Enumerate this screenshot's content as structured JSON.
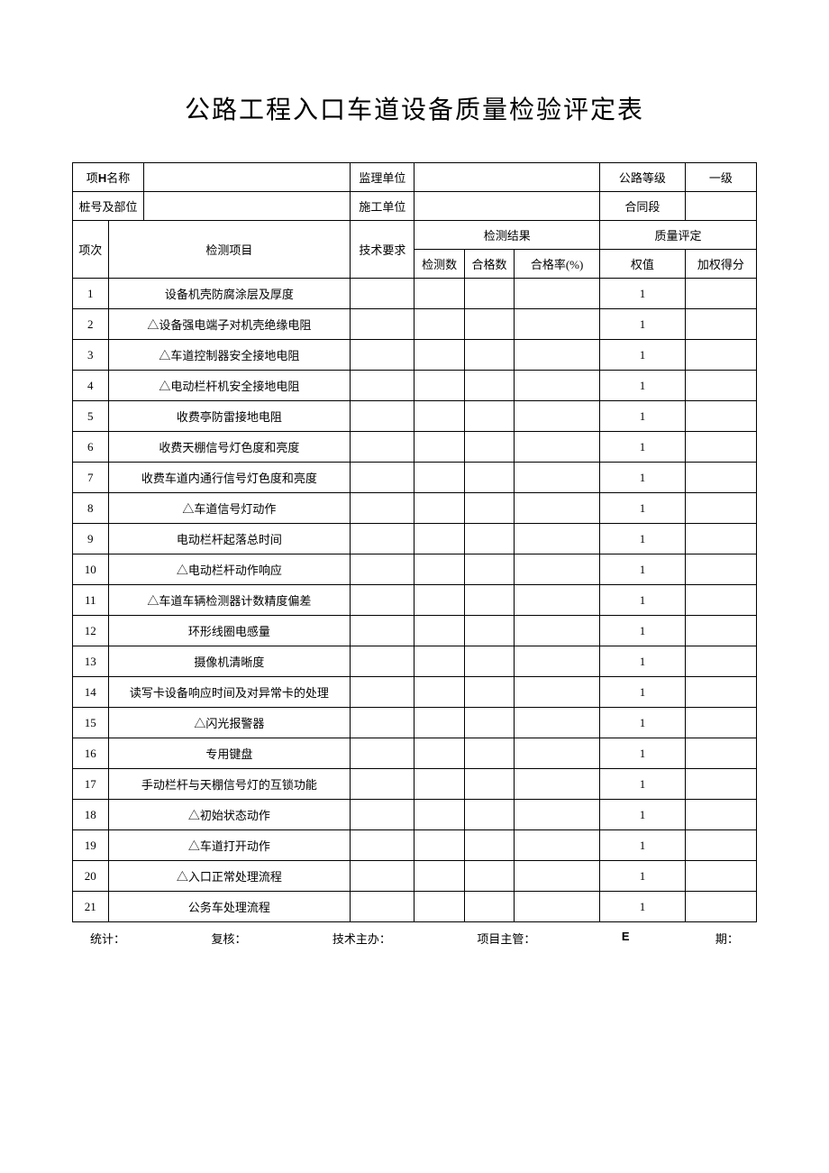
{
  "title_prefix": "公路工程入口车道设备质量检验评定表",
  "header": {
    "project_name_label_pre": "项",
    "project_name_label_h": "H",
    "project_name_label_post": "名称",
    "supervision_unit_label": "监理单位",
    "road_grade_label": "公路等级",
    "road_grade_value": "一级",
    "station_label": "桩号及部位",
    "construction_unit_label": "施工单位",
    "contract_section_label": "合同段"
  },
  "columns": {
    "seq": "项次",
    "detection_item": "检测项目",
    "tech_req": "技术要求",
    "result_group": "检测结果",
    "quality_group": "质量评定",
    "test_count": "检测数",
    "pass_count": "合格数",
    "pass_rate": "合格率(%)",
    "weight": "权值",
    "weighted_score": "加权得分"
  },
  "rows": [
    {
      "seq": "1",
      "item": "设备机壳防腐涂层及厚度",
      "weight": "1"
    },
    {
      "seq": "2",
      "item": "△设备强电端子对机壳绝缘电阻",
      "weight": "1"
    },
    {
      "seq": "3",
      "item": "△车道控制器安全接地电阻",
      "weight": "1"
    },
    {
      "seq": "4",
      "item": "△电动栏杆机安全接地电阻",
      "weight": "1"
    },
    {
      "seq": "5",
      "item": "收费亭防雷接地电阻",
      "weight": "1"
    },
    {
      "seq": "6",
      "item": "收费天棚信号灯色度和亮度",
      "weight": "1"
    },
    {
      "seq": "7",
      "item": "收费车道内通行信号灯色度和亮度",
      "weight": "1"
    },
    {
      "seq": "8",
      "item": "△车道信号灯动作",
      "weight": "1"
    },
    {
      "seq": "9",
      "item": "电动栏杆起落总时间",
      "weight": "1"
    },
    {
      "seq": "10",
      "item": "△电动栏杆动作响应",
      "weight": "1"
    },
    {
      "seq": "11",
      "item": "△车道车辆检测器计数精度偏差",
      "weight": "1"
    },
    {
      "seq": "12",
      "item": "环形线圈电感量",
      "weight": "1"
    },
    {
      "seq": "13",
      "item": "摄像机清晰度",
      "weight": "1"
    },
    {
      "seq": "14",
      "item": "读写卡设备响应时间及对异常卡的处理",
      "weight": "1"
    },
    {
      "seq": "15",
      "item": "△闪光报警器",
      "weight": "1"
    },
    {
      "seq": "16",
      "item": "专用键盘",
      "weight": "1"
    },
    {
      "seq": "17",
      "item": "手动栏杆与天棚信号灯的互锁功能",
      "weight": "1"
    },
    {
      "seq": "18",
      "item": "△初始状态动作",
      "weight": "1"
    },
    {
      "seq": "19",
      "item": "△车道打开动作",
      "weight": "1"
    },
    {
      "seq": "20",
      "item": "△入口正常处理流程",
      "weight": "1"
    },
    {
      "seq": "21",
      "item": "公务车处理流程",
      "weight": "1"
    }
  ],
  "footer": {
    "stat": "统计：",
    "review": "复核：",
    "tech_lead": "技术主办：",
    "project_lead": "项目主管：",
    "e_mark": "E",
    "date": "期："
  },
  "style": {
    "col_widths": {
      "seq": "5%",
      "item": "34%",
      "tech": "9%",
      "test_count": "7%",
      "pass_count": "7%",
      "pass_rate": "12%",
      "weight": "12%",
      "score": "10%"
    }
  }
}
